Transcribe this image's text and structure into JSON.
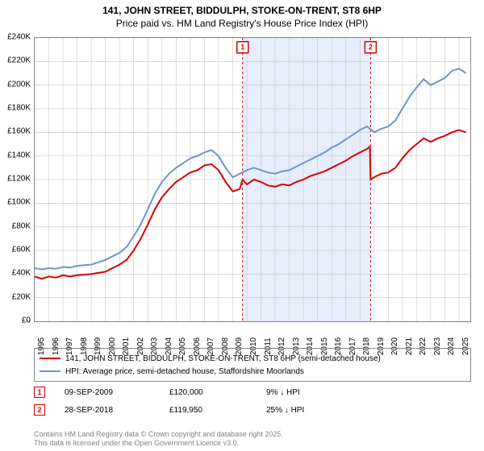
{
  "title_line1": "141, JOHN STREET, BIDDULPH, STOKE-ON-TRENT, ST8 6HP",
  "title_line2": "Price paid vs. HM Land Registry's House Price Index (HPI)",
  "chart": {
    "type": "line",
    "x_years": [
      1995,
      1996,
      1997,
      1998,
      1999,
      2000,
      2001,
      2002,
      2003,
      2004,
      2005,
      2006,
      2007,
      2008,
      2009,
      2010,
      2011,
      2012,
      2013,
      2014,
      2015,
      2016,
      2017,
      2018,
      2019,
      2020,
      2021,
      2022,
      2023,
      2024,
      2025
    ],
    "x_min": 1995,
    "x_max": 2025.8,
    "y_min": 0,
    "y_max": 240000,
    "y_ticks": [
      0,
      20000,
      40000,
      60000,
      80000,
      100000,
      120000,
      140000,
      160000,
      180000,
      200000,
      220000,
      240000
    ],
    "y_tick_labels": [
      "£0",
      "£20K",
      "£40K",
      "£60K",
      "£80K",
      "£100K",
      "£120K",
      "£140K",
      "£160K",
      "£180K",
      "£200K",
      "£220K",
      "£240K"
    ],
    "grid_color": "#c8c8c8",
    "background_color": "#ffffff",
    "shaded_band": {
      "x_start": 2009.7,
      "x_end": 2018.75,
      "fill": "#e6eefb"
    },
    "series": [
      {
        "name": "property",
        "color": "#d80000",
        "width": 2,
        "points": [
          [
            1995,
            38000
          ],
          [
            1995.5,
            36000
          ],
          [
            1996,
            38000
          ],
          [
            1996.5,
            37000
          ],
          [
            1997,
            39000
          ],
          [
            1997.5,
            38000
          ],
          [
            1998,
            39000
          ],
          [
            1998.5,
            39500
          ],
          [
            1999,
            40000
          ],
          [
            1999.5,
            41000
          ],
          [
            2000,
            42000
          ],
          [
            2000.5,
            45000
          ],
          [
            2001,
            48000
          ],
          [
            2001.5,
            52000
          ],
          [
            2002,
            60000
          ],
          [
            2002.5,
            70000
          ],
          [
            2003,
            82000
          ],
          [
            2003.5,
            95000
          ],
          [
            2004,
            105000
          ],
          [
            2004.5,
            112000
          ],
          [
            2005,
            118000
          ],
          [
            2005.5,
            122000
          ],
          [
            2006,
            126000
          ],
          [
            2006.5,
            128000
          ],
          [
            2007,
            132000
          ],
          [
            2007.5,
            133000
          ],
          [
            2008,
            128000
          ],
          [
            2008.5,
            118000
          ],
          [
            2009,
            110000
          ],
          [
            2009.5,
            112000
          ],
          [
            2009.7,
            120000
          ],
          [
            2010,
            116000
          ],
          [
            2010.5,
            120000
          ],
          [
            2011,
            118000
          ],
          [
            2011.5,
            115000
          ],
          [
            2012,
            114000
          ],
          [
            2012.5,
            116000
          ],
          [
            2013,
            115000
          ],
          [
            2013.5,
            118000
          ],
          [
            2014,
            120000
          ],
          [
            2014.5,
            123000
          ],
          [
            2015,
            125000
          ],
          [
            2015.5,
            127000
          ],
          [
            2016,
            130000
          ],
          [
            2016.5,
            133000
          ],
          [
            2017,
            136000
          ],
          [
            2017.5,
            140000
          ],
          [
            2018,
            143000
          ],
          [
            2018.5,
            146000
          ],
          [
            2018.7,
            148000
          ],
          [
            2018.75,
            119950
          ],
          [
            2019,
            122000
          ],
          [
            2019.5,
            125000
          ],
          [
            2020,
            126000
          ],
          [
            2020.5,
            130000
          ],
          [
            2021,
            138000
          ],
          [
            2021.5,
            145000
          ],
          [
            2022,
            150000
          ],
          [
            2022.5,
            155000
          ],
          [
            2023,
            152000
          ],
          [
            2023.5,
            155000
          ],
          [
            2024,
            157000
          ],
          [
            2024.5,
            160000
          ],
          [
            2025,
            162000
          ],
          [
            2025.5,
            160000
          ]
        ]
      },
      {
        "name": "hpi",
        "color": "#6f94c9",
        "width": 2,
        "points": [
          [
            1995,
            45000
          ],
          [
            1995.5,
            44000
          ],
          [
            1996,
            45000
          ],
          [
            1996.5,
            44500
          ],
          [
            1997,
            46000
          ],
          [
            1997.5,
            45500
          ],
          [
            1998,
            47000
          ],
          [
            1998.5,
            47500
          ],
          [
            1999,
            48000
          ],
          [
            1999.5,
            50000
          ],
          [
            2000,
            52000
          ],
          [
            2000.5,
            55000
          ],
          [
            2001,
            58000
          ],
          [
            2001.5,
            63000
          ],
          [
            2002,
            72000
          ],
          [
            2002.5,
            82000
          ],
          [
            2003,
            95000
          ],
          [
            2003.5,
            108000
          ],
          [
            2004,
            118000
          ],
          [
            2004.5,
            125000
          ],
          [
            2005,
            130000
          ],
          [
            2005.5,
            134000
          ],
          [
            2006,
            138000
          ],
          [
            2006.5,
            140000
          ],
          [
            2007,
            143000
          ],
          [
            2007.5,
            145000
          ],
          [
            2008,
            140000
          ],
          [
            2008.5,
            130000
          ],
          [
            2009,
            122000
          ],
          [
            2009.5,
            125000
          ],
          [
            2010,
            128000
          ],
          [
            2010.5,
            130000
          ],
          [
            2011,
            128000
          ],
          [
            2011.5,
            126000
          ],
          [
            2012,
            125000
          ],
          [
            2012.5,
            127000
          ],
          [
            2013,
            128000
          ],
          [
            2013.5,
            131000
          ],
          [
            2014,
            134000
          ],
          [
            2014.5,
            137000
          ],
          [
            2015,
            140000
          ],
          [
            2015.5,
            143000
          ],
          [
            2016,
            147000
          ],
          [
            2016.5,
            150000
          ],
          [
            2017,
            154000
          ],
          [
            2017.5,
            158000
          ],
          [
            2018,
            162000
          ],
          [
            2018.5,
            165000
          ],
          [
            2019,
            160000
          ],
          [
            2019.5,
            163000
          ],
          [
            2020,
            165000
          ],
          [
            2020.5,
            170000
          ],
          [
            2021,
            180000
          ],
          [
            2021.5,
            190000
          ],
          [
            2022,
            198000
          ],
          [
            2022.5,
            205000
          ],
          [
            2023,
            200000
          ],
          [
            2023.5,
            203000
          ],
          [
            2024,
            206000
          ],
          [
            2024.5,
            212000
          ],
          [
            2025,
            214000
          ],
          [
            2025.5,
            210000
          ]
        ]
      }
    ],
    "sale_markers": [
      {
        "label": "1",
        "x": 2009.7,
        "color": "#d80000"
      },
      {
        "label": "2",
        "x": 2018.75,
        "color": "#d80000"
      }
    ],
    "marker_y_top": 232000
  },
  "legend": {
    "items": [
      {
        "color": "#d80000",
        "label": "141, JOHN STREET, BIDDULPH, STOKE-ON-TRENT, ST8 6HP (semi-detached house)"
      },
      {
        "color": "#6f94c9",
        "label": "HPI: Average price, semi-detached house, Staffordshire Moorlands"
      }
    ]
  },
  "sales_table": [
    {
      "marker": "1",
      "marker_color": "#d80000",
      "date": "09-SEP-2009",
      "price": "£120,000",
      "delta": "9% ↓ HPI"
    },
    {
      "marker": "2",
      "marker_color": "#d80000",
      "date": "28-SEP-2018",
      "price": "£119,950",
      "delta": "25% ↓ HPI"
    }
  ],
  "footer_line1": "Contains HM Land Registry data © Crown copyright and database right 2025.",
  "footer_line2": "This data is licensed under the Open Government Licence v3.0."
}
